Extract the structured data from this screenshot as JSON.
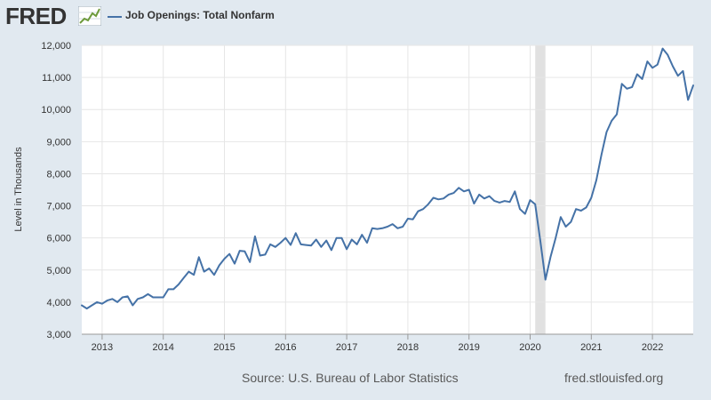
{
  "header": {
    "logo_text": "FRED",
    "series_label": "Job Openings: Total Nonfarm",
    "series_color": "#4572a7"
  },
  "footer": {
    "source": "Source: U.S. Bureau of Labor Statistics",
    "url": "fred.stlouisfed.org"
  },
  "chart_data": {
    "type": "line",
    "title": "",
    "xlabel": "",
    "ylabel": "Level in Thousands",
    "ylim": [
      3000,
      12000
    ],
    "xlim": [
      2012.667,
      2022.667
    ],
    "yticks": [
      3000,
      4000,
      5000,
      6000,
      7000,
      8000,
      9000,
      10000,
      11000,
      12000
    ],
    "ytick_labels": [
      "3,000",
      "4,000",
      "5,000",
      "6,000",
      "7,000",
      "8,000",
      "9,000",
      "10,000",
      "11,000",
      "12,000"
    ],
    "xticks": [
      2013,
      2014,
      2015,
      2016,
      2017,
      2018,
      2019,
      2020,
      2021,
      2022
    ],
    "xtick_labels": [
      "2013",
      "2014",
      "2015",
      "2016",
      "2017",
      "2018",
      "2019",
      "2020",
      "2021",
      "2022"
    ],
    "grid": true,
    "recession": {
      "start": 2020.083,
      "end": 2020.25
    },
    "series": [
      {
        "name": "Job Openings: Total Nonfarm",
        "color": "#4572a7",
        "x": [
          2012.667,
          2012.75,
          2012.833,
          2012.917,
          2013.0,
          2013.083,
          2013.167,
          2013.25,
          2013.333,
          2013.417,
          2013.5,
          2013.583,
          2013.667,
          2013.75,
          2013.833,
          2013.917,
          2014.0,
          2014.083,
          2014.167,
          2014.25,
          2014.333,
          2014.417,
          2014.5,
          2014.583,
          2014.667,
          2014.75,
          2014.833,
          2014.917,
          2015.0,
          2015.083,
          2015.167,
          2015.25,
          2015.333,
          2015.417,
          2015.5,
          2015.583,
          2015.667,
          2015.75,
          2015.833,
          2015.917,
          2016.0,
          2016.083,
          2016.167,
          2016.25,
          2016.333,
          2016.417,
          2016.5,
          2016.583,
          2016.667,
          2016.75,
          2016.833,
          2016.917,
          2017.0,
          2017.083,
          2017.167,
          2017.25,
          2017.333,
          2017.417,
          2017.5,
          2017.583,
          2017.667,
          2017.75,
          2017.833,
          2017.917,
          2018.0,
          2018.083,
          2018.167,
          2018.25,
          2018.333,
          2018.417,
          2018.5,
          2018.583,
          2018.667,
          2018.75,
          2018.833,
          2018.917,
          2019.0,
          2019.083,
          2019.167,
          2019.25,
          2019.333,
          2019.417,
          2019.5,
          2019.583,
          2019.667,
          2019.75,
          2019.833,
          2019.917,
          2020.0,
          2020.083,
          2020.167,
          2020.25,
          2020.333,
          2020.417,
          2020.5,
          2020.583,
          2020.667,
          2020.75,
          2020.833,
          2020.917,
          2021.0,
          2021.083,
          2021.167,
          2021.25,
          2021.333,
          2021.417,
          2021.5,
          2021.583,
          2021.667,
          2021.75,
          2021.833,
          2021.917,
          2022.0,
          2022.083,
          2022.167,
          2022.25,
          2022.333,
          2022.417,
          2022.5,
          2022.583,
          2022.667
        ],
        "values": [
          3900,
          3800,
          3900,
          4000,
          3950,
          4050,
          4100,
          4000,
          4150,
          4180,
          3900,
          4100,
          4150,
          4250,
          4150,
          4150,
          4150,
          4400,
          4400,
          4550,
          4750,
          4950,
          4850,
          5400,
          4950,
          5050,
          4850,
          5150,
          5350,
          5500,
          5200,
          5600,
          5580,
          5250,
          6050,
          5450,
          5480,
          5800,
          5720,
          5850,
          6000,
          5780,
          6150,
          5800,
          5780,
          5760,
          5950,
          5720,
          5920,
          5620,
          6000,
          6000,
          5650,
          5950,
          5800,
          6100,
          5850,
          6300,
          6280,
          6300,
          6350,
          6430,
          6300,
          6350,
          6600,
          6580,
          6830,
          6900,
          7050,
          7250,
          7200,
          7230,
          7350,
          7400,
          7560,
          7450,
          7500,
          7070,
          7350,
          7230,
          7300,
          7150,
          7100,
          7150,
          7120,
          7450,
          6900,
          6750,
          7180,
          7050,
          5900,
          4700,
          5400,
          6000,
          6650,
          6350,
          6500,
          6900,
          6850,
          6950,
          7250,
          7800,
          8600,
          9300,
          9650,
          9850,
          10800,
          10650,
          10700,
          11100,
          10950,
          11500,
          11300,
          11400,
          11900,
          11700,
          11350,
          11050,
          11200,
          10300,
          10750
        ]
      }
    ]
  }
}
